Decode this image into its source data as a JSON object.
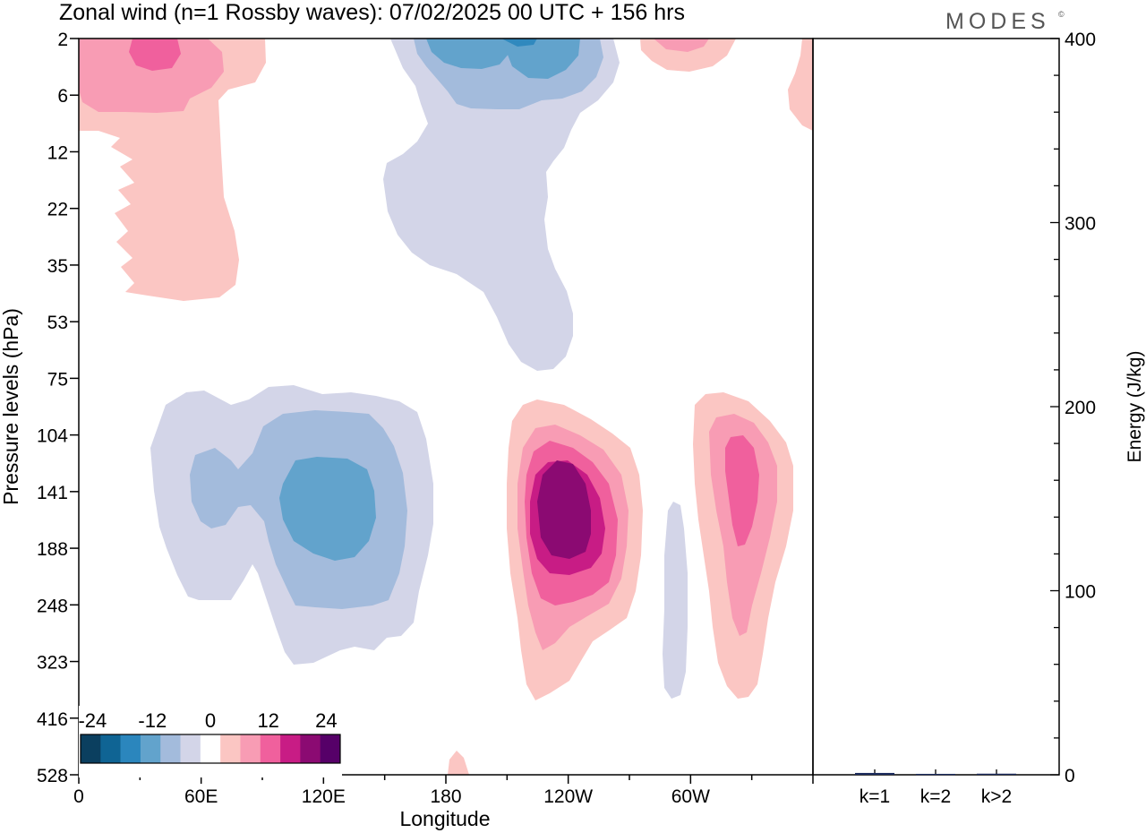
{
  "title": "Zonal wind (n=1 Rossby waves):  07/02/2025  00 UTC  + 156 hrs",
  "brand": "MODES",
  "brand_mark": "©",
  "chart_data": [
    {
      "type": "heatmap",
      "xlabel": "Longitude",
      "ylabel": "Pressure levels (hPa)",
      "x_ticks": [
        "0",
        "60E",
        "120E",
        "180",
        "120W",
        "60W"
      ],
      "y_ticks": [
        "2",
        "6",
        "12",
        "22",
        "35",
        "53",
        "75",
        "104",
        "141",
        "188",
        "248",
        "323",
        "416",
        "528"
      ],
      "colorbar": {
        "labels": [
          "-24",
          "-12",
          "0",
          "12",
          "24"
        ],
        "colors": [
          "#0b3f5f",
          "#0f6494",
          "#2b86bd",
          "#62a3cc",
          "#a3bbdc",
          "#d3d5e8",
          "#ffffff",
          "#fbc6c3",
          "#f89cb4",
          "#f0609d",
          "#c81c85",
          "#8b0a72",
          "#560068"
        ]
      },
      "grid": false
    },
    {
      "type": "bar",
      "categories": [
        "k=1",
        "k=2",
        "k>2"
      ],
      "values": [
        1.0,
        0.5,
        0.6
      ],
      "ylabel": "Energy (J/kg)",
      "ylim": [
        0,
        400
      ],
      "y_ticks": [
        "0",
        "100",
        "200",
        "300",
        "400"
      ],
      "bar_color": "#1a2a5c"
    }
  ]
}
